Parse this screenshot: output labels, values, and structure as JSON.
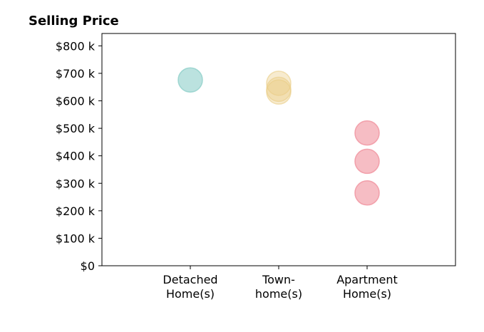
{
  "chart_data": {
    "type": "scatter",
    "title": "Selling Price",
    "xlabel": "",
    "ylabel": "",
    "categories": [
      {
        "key": "detached",
        "lines": [
          "Detached",
          "Home(s)"
        ]
      },
      {
        "key": "town",
        "lines": [
          "Town-",
          "home(s)"
        ]
      },
      {
        "key": "apartment",
        "lines": [
          "Apartment",
          "Home(s)"
        ]
      }
    ],
    "x_range": [
      0,
      4
    ],
    "ylim": [
      0,
      845
    ],
    "y_ticks": [
      0,
      100,
      200,
      300,
      400,
      500,
      600,
      700,
      800
    ],
    "y_tick_labels": [
      "$0",
      "$100 k",
      "$200 k",
      "$300 k",
      "$400 k",
      "$500 k",
      "$600 k",
      "$700 k",
      "$800 k"
    ],
    "grid": false,
    "legend": "none",
    "series": [
      {
        "category": "detached",
        "values": [
          676
        ],
        "color": "#8ecfc9",
        "opacity": 0.6
      },
      {
        "category": "town",
        "values": [
          664,
          642,
          632
        ],
        "color": "#eacd86",
        "opacity": 0.4
      },
      {
        "category": "apartment",
        "values": [
          483,
          380,
          265
        ],
        "color": "#f0919d",
        "opacity": 0.6
      }
    ]
  }
}
